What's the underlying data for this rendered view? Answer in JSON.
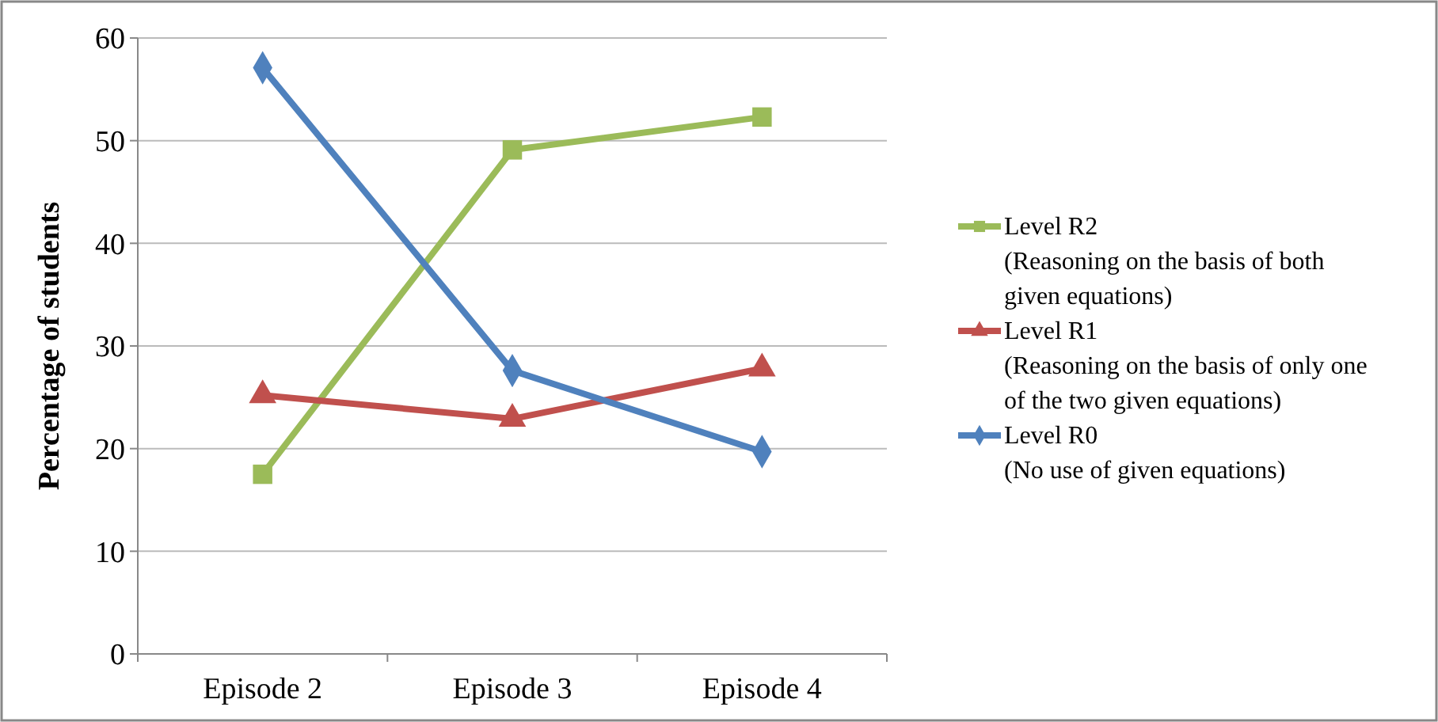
{
  "chart_data": {
    "type": "line",
    "ylabel": "Percentage of students",
    "categories": [
      "Episode 2",
      "Episode 3",
      "Episode 4"
    ],
    "series": [
      {
        "name": "Level R2\n(Reasoning on the basis of both\ngiven equations)",
        "color": "#9bbb59",
        "marker": "square",
        "values": [
          17.5,
          49.1,
          52.3
        ]
      },
      {
        "name": "Level R1\n(Reasoning on the basis of only one\nof the two given equations)",
        "color": "#c0504d",
        "marker": "triangle",
        "values": [
          25.2,
          22.9,
          27.8
        ]
      },
      {
        "name": "Level R0\n(No use of given equations)",
        "color": "#4f81bd",
        "marker": "diamond",
        "values": [
          57.1,
          27.6,
          19.7
        ]
      }
    ],
    "ylim": [
      0,
      60
    ],
    "yticks": [
      0,
      10,
      20,
      30,
      40,
      50,
      60
    ],
    "grid": "y",
    "legend": "right"
  }
}
